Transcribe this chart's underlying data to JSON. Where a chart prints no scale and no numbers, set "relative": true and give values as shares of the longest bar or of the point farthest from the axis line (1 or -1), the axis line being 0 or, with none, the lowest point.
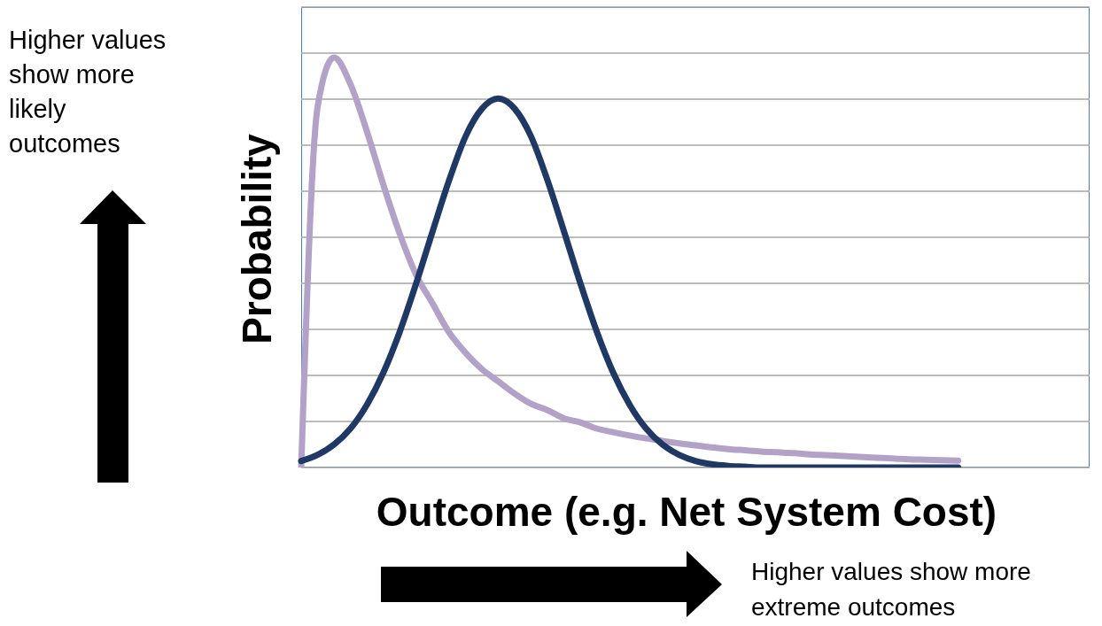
{
  "chart_data": {
    "type": "line",
    "relative": true,
    "ylabel": "Probability",
    "xlabel": "Outcome (e.g. Net System Cost)",
    "categories": [
      null,
      null,
      null,
      null,
      null,
      null,
      null,
      null,
      null,
      null,
      null,
      null,
      null,
      null,
      null,
      null,
      null,
      null,
      null,
      null,
      null,
      null,
      null,
      null,
      null,
      null,
      null,
      null,
      null,
      null,
      null,
      null,
      null,
      null,
      null,
      null,
      null,
      null,
      null,
      null,
      null,
      null,
      null,
      null,
      null,
      null,
      null,
      null,
      null
    ],
    "series": [
      {
        "color": "#b3a2c7",
        "values": [
          0,
          0.88,
          1,
          0.935,
          0.82,
          0.69,
          0.57,
          0.47,
          0.4,
          0.33,
          0.28,
          0.24,
          0.21,
          0.18,
          0.155,
          0.14,
          0.12,
          0.11,
          0.095,
          0.086,
          0.078,
          0.071,
          0.065,
          0.059,
          0.054,
          0.049,
          0.045,
          0.042,
          0.039,
          0.037,
          0.035,
          0.032,
          0.03,
          0.028,
          0.026,
          0.024,
          0.022,
          0.02,
          0.019,
          0.018,
          0.017,
          null,
          null,
          null,
          null,
          null,
          null,
          null,
          null
        ]
      },
      {
        "color": "#1f3864",
        "values": [
          0.016,
          0.031,
          0.056,
          0.095,
          0.153,
          0.231,
          0.331,
          0.449,
          0.576,
          0.7,
          0.807,
          0.875,
          0.9,
          0.875,
          0.807,
          0.7,
          0.576,
          0.449,
          0.331,
          0.231,
          0.153,
          0.095,
          0.056,
          0.031,
          0.016,
          0.008,
          0.004,
          0.002,
          0,
          0,
          0,
          0,
          0,
          0,
          0,
          0,
          0,
          0,
          0,
          0,
          0,
          null,
          null,
          null,
          null,
          null,
          null,
          null,
          null
        ]
      }
    ],
    "grid": "y",
    "annotations": [
      "Higher values show more likely outcomes",
      "Higher values show more extreme outcomes"
    ]
  }
}
